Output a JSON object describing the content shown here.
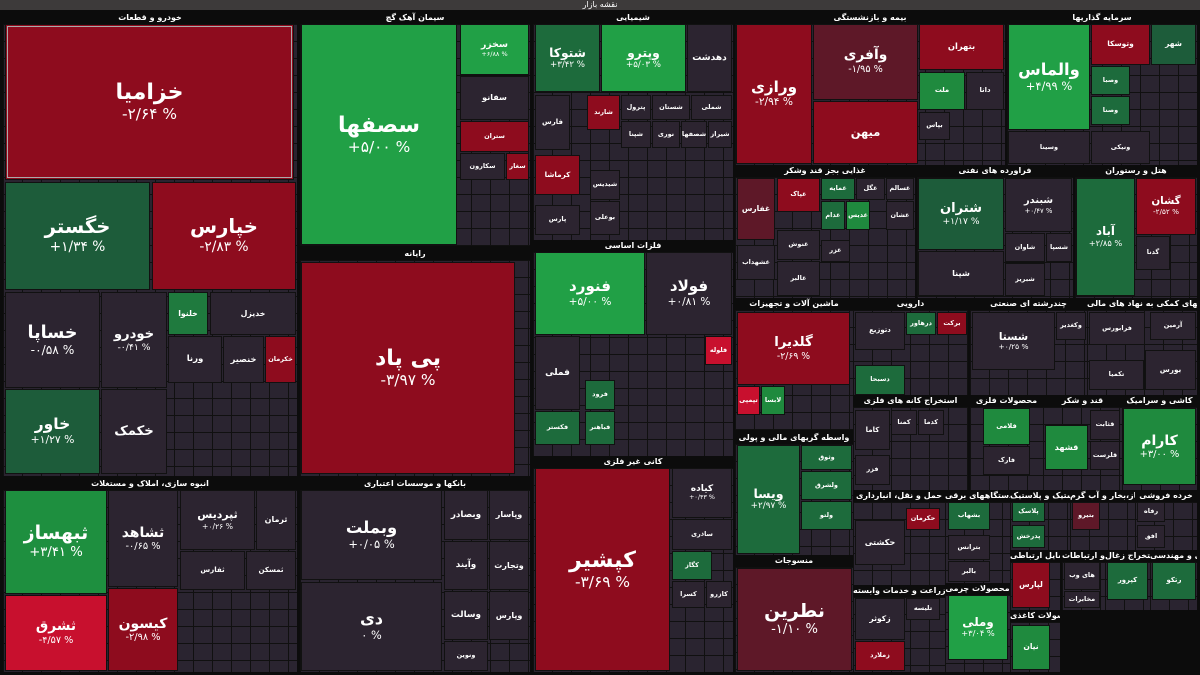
{
  "title": "نقشه بازار",
  "sectors": [
    {
      "name": "خودرو و قطعات",
      "tiles": [
        {
          "name": "خزامیا",
          "change": "-۲/۶۴ %",
          "color": "#8e0c1e"
        },
        {
          "name": "خگستر",
          "change": "+۱/۳۴ %",
          "color": "#1d5c3a"
        },
        {
          "name": "خپارس",
          "change": "-۲/۸۳ %",
          "color": "#8e0c1e"
        },
        {
          "name": "خساپا",
          "change": "-۰/۵۸ %",
          "color": "#2c2430"
        },
        {
          "name": "خاور",
          "change": "+۱/۲۷ %",
          "color": "#1d5c3a"
        },
        {
          "name": "خودرو",
          "change": "-۰/۴۱ %",
          "color": "#2c2430"
        },
        {
          "name": "خکمک",
          "color": "#2c2430"
        },
        {
          "name": "خلنوا",
          "color": "#1f7a3e"
        },
        {
          "name": "خدیزل",
          "color": "#2c2430"
        },
        {
          "name": "ورنا",
          "color": "#2c2430"
        },
        {
          "name": "خنصیر",
          "color": "#2c2430"
        },
        {
          "name": "خکرمان",
          "color": "#8e0c1e"
        }
      ]
    },
    {
      "name": "انبوه سازی، املاک و مستغلات",
      "tiles": [
        {
          "name": "ثبهساز",
          "change": "+۳/۴۱ %",
          "color": "#1e8f3f"
        },
        {
          "name": "ثشرق",
          "change": "-۴/۵۷ %",
          "color": "#c8102e"
        },
        {
          "name": "ثشاهد",
          "change": "-۰/۶۵ %",
          "color": "#2c2430"
        },
        {
          "name": "کیسون",
          "change": "-۲/۹۸ %",
          "color": "#8e0c1e"
        },
        {
          "name": "ثپردیس",
          "change": "+۰/۲۶ %",
          "color": "#2c2430"
        },
        {
          "name": "ثرمان",
          "color": "#2c2430"
        },
        {
          "name": "ثفارس",
          "color": "#2c2430"
        },
        {
          "name": "ثمسکن",
          "color": "#2c2430"
        }
      ]
    },
    {
      "name": "سیمان آهک گچ",
      "tiles": [
        {
          "name": "سصفها",
          "change": "+۵/۰۰ %",
          "color": "#21a046"
        },
        {
          "name": "سخزر",
          "change": "+۶/۸۸ %",
          "color": "#21a046"
        },
        {
          "name": "سفانو",
          "color": "#2c2430"
        },
        {
          "name": "ستران",
          "color": "#8e0c1e"
        },
        {
          "name": "سکارون",
          "color": "#2c2430"
        },
        {
          "name": "سغار",
          "color": "#8e0c1e"
        }
      ]
    },
    {
      "name": "رایانه",
      "tiles": [
        {
          "name": "پی پاد",
          "change": "-۳/۹۷ %",
          "color": "#8e0c1e"
        }
      ]
    },
    {
      "name": "بانکها و موسسات اعتباری",
      "tiles": [
        {
          "name": "وبملت",
          "change": "+۰/۰۵ %",
          "color": "#2c2430"
        },
        {
          "name": "دی",
          "change": "۰ %",
          "color": "#2c2430"
        },
        {
          "name": "وبصادر",
          "color": "#2c2430"
        },
        {
          "name": "وپاسار",
          "color": "#2c2430"
        },
        {
          "name": "وآیند",
          "color": "#2c2430"
        },
        {
          "name": "وتجارت",
          "color": "#2c2430"
        },
        {
          "name": "وسالت",
          "color": "#2c2430"
        },
        {
          "name": "وپارس",
          "color": "#2c2430"
        },
        {
          "name": "ونوین",
          "color": "#2c2430"
        }
      ]
    },
    {
      "name": "شیمیایی",
      "tiles": [
        {
          "name": "شتوکا",
          "change": "+۳/۴۲ %",
          "color": "#1d6b3c"
        },
        {
          "name": "وپترو",
          "change": "+۵/۰۳ %",
          "color": "#21a046"
        },
        {
          "name": "دهدشت",
          "color": "#2c2430"
        },
        {
          "name": "فارس",
          "color": "#2c2430"
        },
        {
          "name": "شارند",
          "color": "#8e0c1e"
        },
        {
          "name": "پترول",
          "color": "#2c2430"
        },
        {
          "name": "شستان",
          "color": "#2c2430"
        },
        {
          "name": "شملی",
          "color": "#2c2430"
        },
        {
          "name": "شپنا",
          "color": "#2c2430"
        },
        {
          "name": "نوری",
          "color": "#2c2430"
        },
        {
          "name": "شصفها",
          "color": "#2c2430"
        },
        {
          "name": "شیراز",
          "color": "#2c2430"
        },
        {
          "name": "کرماشا",
          "color": "#8e0c1e"
        },
        {
          "name": "شیدیس",
          "color": "#2c2430"
        },
        {
          "name": "پارس",
          "color": "#2c2430"
        },
        {
          "name": "بوعلی",
          "color": "#2c2430"
        }
      ]
    },
    {
      "name": "فلزات اساسی",
      "tiles": [
        {
          "name": "فنورد",
          "change": "+۵/۰۰ %",
          "color": "#21a046"
        },
        {
          "name": "فولاد",
          "change": "+۰/۸۱ %",
          "color": "#2c2430"
        },
        {
          "name": "فملی",
          "color": "#2c2430"
        },
        {
          "name": "فکستر",
          "color": "#1d6b3c"
        },
        {
          "name": "فرود",
          "color": "#1d6b3c"
        },
        {
          "name": "فباهنر",
          "color": "#1d6b3c"
        },
        {
          "name": "فلوله",
          "color": "#c8102e"
        }
      ]
    },
    {
      "name": "کانی غیر فلزی",
      "tiles": [
        {
          "name": "کپشیر",
          "change": "-۳/۶۹ %",
          "color": "#8e0c1e"
        },
        {
          "name": "کیاده",
          "change": "+۰/۴۳ %",
          "color": "#2c2430"
        },
        {
          "name": "ساذری",
          "color": "#2c2430"
        },
        {
          "name": "کگاز",
          "color": "#1d6b3c"
        },
        {
          "name": "کسرا",
          "color": "#2c2430"
        },
        {
          "name": "کازرو",
          "color": "#2c2430"
        }
      ]
    },
    {
      "name": "بیمه و بازنشستگی",
      "tiles": [
        {
          "name": "ورازی",
          "change": "-۲/۹۴ %",
          "color": "#8e0c1e"
        },
        {
          "name": "وآفری",
          "change": "-۱/۹۵ %",
          "color": "#5e1828"
        },
        {
          "name": "میهن",
          "color": "#8e0c1e"
        },
        {
          "name": "بتهران",
          "color": "#8e0c1e"
        },
        {
          "name": "ملت",
          "color": "#1f8a3e"
        },
        {
          "name": "دانا",
          "color": "#2c2430"
        },
        {
          "name": "بپاس",
          "color": "#2c2430"
        }
      ]
    },
    {
      "name": "سرمایه گذاریها",
      "tiles": [
        {
          "name": "والماس",
          "change": "+۴/۹۹ %",
          "color": "#21a046"
        },
        {
          "name": "وتوسکا",
          "color": "#8e0c1e"
        },
        {
          "name": "شهر",
          "color": "#1d5c3a"
        },
        {
          "name": "وصبا",
          "color": "#1d6b3c"
        },
        {
          "name": "وصنا",
          "color": "#1d6b3c"
        },
        {
          "name": "وسینا",
          "color": "#2c2430"
        },
        {
          "name": "ونیکی",
          "color": "#2c2430"
        }
      ]
    },
    {
      "name": "غذایی بجز قند وشکر",
      "tiles": [
        {
          "name": "غفارس",
          "color": "#5e1828"
        },
        {
          "name": "غپاک",
          "color": "#8e0c1e"
        },
        {
          "name": "غمایه",
          "color": "#1d6b3c"
        },
        {
          "name": "غگل",
          "color": "#2c2430"
        },
        {
          "name": "غسالم",
          "color": "#2c2430"
        },
        {
          "name": "غدام",
          "color": "#1d6b3c"
        },
        {
          "name": "غدیس",
          "color": "#1f8a3e"
        },
        {
          "name": "غشان",
          "color": "#2c2430"
        },
        {
          "name": "غشهداب",
          "color": "#2c2430"
        },
        {
          "name": "غنوش",
          "color": "#2c2430"
        },
        {
          "name": "غالبر",
          "color": "#2c2430"
        },
        {
          "name": "غزر",
          "color": "#2c2430"
        }
      ]
    },
    {
      "name": "فراورده های نفتی",
      "tiles": [
        {
          "name": "شتران",
          "change": "+۱/۱۷ %",
          "color": "#1d5c3a"
        },
        {
          "name": "شبندر",
          "change": "+۰/۴۷ %",
          "color": "#2c2430"
        },
        {
          "name": "شپنا",
          "color": "#2c2430"
        },
        {
          "name": "شاوان",
          "color": "#2c2430"
        },
        {
          "name": "شسپا",
          "color": "#2c2430"
        },
        {
          "name": "شبریز",
          "color": "#2c2430"
        }
      ]
    },
    {
      "name": "هتل و رستوران",
      "tiles": [
        {
          "name": "آباد",
          "change": "+۲/۸۵ %",
          "color": "#1d6b3c"
        },
        {
          "name": "گشان",
          "change": "-۲/۵۲ %",
          "color": "#8e0c1e"
        },
        {
          "name": "گدنا",
          "color": "#2c2430"
        }
      ]
    },
    {
      "name": "ماشین آلات و تجهیزات",
      "tiles": [
        {
          "name": "گلدیرا",
          "change": "-۲/۶۹ %",
          "color": "#8e0c1e"
        },
        {
          "name": "تپمپی",
          "color": "#c8102e"
        },
        {
          "name": "لابسا",
          "color": "#1f8a3e"
        }
      ]
    },
    {
      "name": "دارویی",
      "tiles": [
        {
          "name": "دتوزیع",
          "color": "#2c2430"
        },
        {
          "name": "دسبحا",
          "color": "#1d6b3c"
        },
        {
          "name": "درهاور",
          "color": "#1d6b3c"
        },
        {
          "name": "برکت",
          "color": "#8e0c1e"
        }
      ]
    },
    {
      "name": "استخراج کانه های فلزی",
      "tiles": [
        {
          "name": "کاما",
          "color": "#2c2430"
        },
        {
          "name": "کمنا",
          "color": "#2c2430"
        },
        {
          "name": "کدما",
          "color": "#2c2430"
        },
        {
          "name": "فزر",
          "color": "#2c2430"
        }
      ]
    },
    {
      "name": "چندرشته ای صنعتی",
      "tiles": [
        {
          "name": "شستا",
          "change": "+۰/۲۵ %",
          "color": "#2c2430"
        },
        {
          "name": "وکغدیر",
          "color": "#2c2430"
        }
      ]
    },
    {
      "name": "فعالیتهای کمکی به نهاد های مالی",
      "tiles": [
        {
          "name": "فرابورس",
          "color": "#2c2430"
        },
        {
          "name": "بورس",
          "color": "#2c2430"
        },
        {
          "name": "تکمیا",
          "color": "#2c2430"
        },
        {
          "name": "آرمین",
          "color": "#2c2430"
        }
      ]
    },
    {
      "name": "محصولات فلزی",
      "tiles": [
        {
          "name": "فلامی",
          "color": "#1f8a3e"
        },
        {
          "name": "فارک",
          "color": "#2c2430"
        }
      ]
    },
    {
      "name": "قند و شکر",
      "tiles": [
        {
          "name": "قثابت",
          "color": "#2c2430"
        },
        {
          "name": "قشهد",
          "color": "#1f8a3e"
        },
        {
          "name": "قلرست",
          "color": "#2c2430"
        }
      ]
    },
    {
      "name": "کاشی و سرامیک",
      "tiles": [
        {
          "name": "کارام",
          "change": "+۳/۰۰ %",
          "color": "#1f8a3e"
        }
      ]
    },
    {
      "name": "واسطه گریهای مالی و پولی",
      "tiles": [
        {
          "name": "ویسا",
          "change": "+۲/۹۷ %",
          "color": "#1d6b3c"
        },
        {
          "name": "وثوق",
          "color": "#1d6b3c"
        },
        {
          "name": "ولشرق",
          "color": "#1d6b3c"
        },
        {
          "name": "ولتو",
          "color": "#1d6b3c"
        }
      ]
    },
    {
      "name": "منسوجات",
      "tiles": [
        {
          "name": "نطرین",
          "change": "-۱/۱۰ %",
          "color": "#5e1828"
        }
      ]
    },
    {
      "name": "حمل و نقل، انبارداری",
      "tiles": [
        {
          "name": "حکشتی",
          "color": "#2c2430"
        },
        {
          "name": "حکرمان",
          "color": "#8e0c1e"
        }
      ]
    },
    {
      "name": "زراعت و خدمات وابسته",
      "tiles": [
        {
          "name": "زکوثر",
          "color": "#2c2430"
        },
        {
          "name": "زملارد",
          "color": "#8e0c1e"
        },
        {
          "name": "تلیسه",
          "color": "#2c2430"
        }
      ]
    },
    {
      "name": "دستگاههای برقی",
      "tiles": [
        {
          "name": "بشهاب",
          "color": "#1d6b3c"
        },
        {
          "name": "بترانس",
          "color": "#2c2430"
        },
        {
          "name": "بالبر",
          "color": "#2c2430"
        }
      ]
    },
    {
      "name": "محصولات چرمی",
      "tiles": [
        {
          "name": "وملی",
          "change": "+۳/۰۴ %",
          "color": "#21a046"
        }
      ]
    },
    {
      "name": "لاستیک و پلاستیک",
      "tiles": [
        {
          "name": "پلاسک",
          "color": "#1d6b3c"
        },
        {
          "name": "پدرخش",
          "color": "#1d6b3c"
        }
      ]
    },
    {
      "name": "وسایل ارتباطی",
      "tiles": [
        {
          "name": "لپارس",
          "color": "#8e0c1e"
        }
      ]
    },
    {
      "name": "محصولات کاغذی",
      "tiles": [
        {
          "name": "نیان",
          "color": "#1f8a3e"
        }
      ]
    },
    {
      "name": "عرضه برق، گاز،بخار و آب گرم",
      "tiles": [
        {
          "name": "بتیرو",
          "color": "#5e1828"
        }
      ]
    },
    {
      "name": "خرده فروشی",
      "tiles": [
        {
          "name": "رفاه",
          "color": "#2c2430"
        },
        {
          "name": "افق",
          "color": "#2c2430"
        }
      ]
    },
    {
      "name": "اطلاعات و ارتباطات",
      "tiles": [
        {
          "name": "های وب",
          "color": "#2c2430"
        },
        {
          "name": "مخابرات",
          "color": "#2c2430"
        }
      ]
    },
    {
      "name": "استخراج زغال",
      "tiles": [
        {
          "name": "کپرور",
          "color": "#1d6b3c"
        }
      ]
    },
    {
      "name": "فنی و مهندسی",
      "tiles": [
        {
          "name": "رتکو",
          "color": "#1d6b3c"
        }
      ]
    }
  ]
}
